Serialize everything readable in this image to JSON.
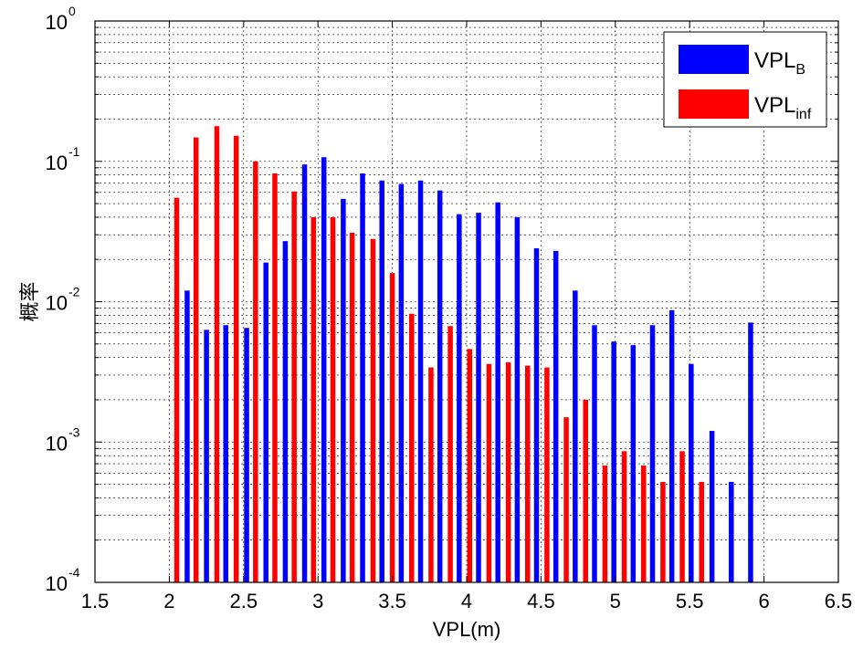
{
  "chart_data": {
    "type": "bar",
    "scale_y": "log",
    "grid": true,
    "legend_placement": "top-right",
    "xlabel": "VPL(m)",
    "ylabel": "概率",
    "xlim": [
      1.5,
      6.5
    ],
    "ylim": [
      0.0001,
      1
    ],
    "x_ticks": [
      "1.5",
      "2",
      "2.5",
      "3",
      "3.5",
      "4",
      "4.5",
      "5",
      "5.5",
      "6",
      "6.5"
    ],
    "y_ticks": [
      {
        "base": "10",
        "exp": "-4",
        "value": 0.0001
      },
      {
        "base": "10",
        "exp": "-3",
        "value": 0.001
      },
      {
        "base": "10",
        "exp": "-2",
        "value": 0.01
      },
      {
        "base": "10",
        "exp": "-1",
        "value": 0.1
      },
      {
        "base": "10",
        "exp": "0",
        "value": 1
      }
    ],
    "series": [
      {
        "name_main": "VPL",
        "name_sub": "B",
        "color": "#0000ff",
        "x": [
          2.12,
          2.25,
          2.38,
          2.52,
          2.65,
          2.78,
          2.91,
          3.04,
          3.17,
          3.3,
          3.43,
          3.56,
          3.69,
          3.82,
          3.95,
          4.08,
          4.21,
          4.34,
          4.47,
          4.6,
          4.73,
          4.86,
          4.99,
          5.12,
          5.25,
          5.38,
          5.51,
          5.65,
          5.78,
          5.91
        ],
        "values": [
          0.012,
          0.0063,
          0.0068,
          0.0065,
          0.019,
          0.027,
          0.095,
          0.107,
          0.054,
          0.082,
          0.073,
          0.069,
          0.073,
          0.062,
          0.042,
          0.043,
          0.051,
          0.04,
          0.024,
          0.023,
          0.012,
          0.0068,
          0.0052,
          0.0049,
          0.0068,
          0.0087,
          0.0036,
          0.0012,
          0.00052,
          0.0071
        ]
      },
      {
        "name_main": "VPL",
        "name_sub": "inf",
        "color": "#ff0000",
        "x": [
          2.05,
          2.18,
          2.32,
          2.45,
          2.58,
          2.71,
          2.84,
          2.97,
          3.1,
          3.23,
          3.37,
          3.5,
          3.63,
          3.76,
          3.89,
          4.02,
          4.15,
          4.28,
          4.41,
          4.54,
          4.67,
          4.8,
          4.93,
          5.06,
          5.19,
          5.32,
          5.45,
          5.58
        ],
        "values": [
          0.055,
          0.148,
          0.178,
          0.152,
          0.1,
          0.082,
          0.061,
          0.04,
          0.04,
          0.031,
          0.028,
          0.016,
          0.0082,
          0.0034,
          0.0067,
          0.0046,
          0.0036,
          0.0037,
          0.0035,
          0.0034,
          0.0015,
          0.002,
          0.00068,
          0.00086,
          0.00068,
          0.00052,
          0.00086,
          0.00052
        ]
      }
    ]
  }
}
